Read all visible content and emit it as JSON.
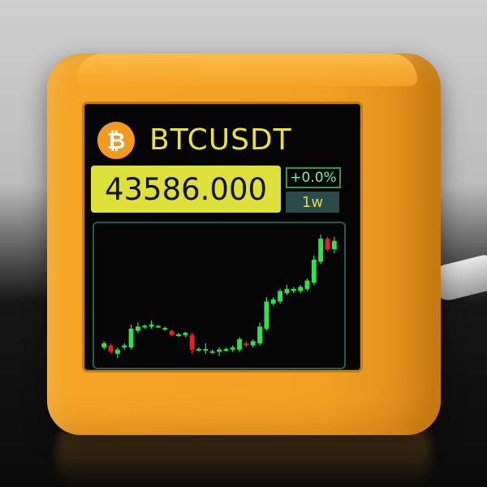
{
  "screen": {
    "coin_icon_glyph": "₿",
    "pair": "BTCUSDT",
    "price": "43586.000",
    "change": "+0.0%",
    "period": "1w"
  },
  "colors": {
    "up": "#2fe24a",
    "down": "#e3212b",
    "price_bg": "#dde13a",
    "accent_text": "#e9e23a"
  },
  "chart_data": {
    "type": "candlestick",
    "candles": [
      {
        "o": 6,
        "c": 8,
        "h": 9,
        "l": 5
      },
      {
        "o": 7,
        "c": 4,
        "h": 8,
        "l": 3
      },
      {
        "o": 3,
        "c": 5,
        "h": 6,
        "l": 1
      },
      {
        "o": 6,
        "c": 7,
        "h": 8,
        "l": 5
      },
      {
        "o": 6,
        "c": 15,
        "h": 17,
        "l": 5
      },
      {
        "o": 14,
        "c": 16,
        "h": 18,
        "l": 13
      },
      {
        "o": 16,
        "c": 16.4,
        "h": 17,
        "l": 15
      },
      {
        "o": 16,
        "c": 17,
        "h": 19,
        "l": 15
      },
      {
        "o": 16,
        "c": 16.3,
        "h": 16.8,
        "l": 15.5
      },
      {
        "o": 15,
        "c": 15.3,
        "h": 16,
        "l": 14
      },
      {
        "o": 14,
        "c": 12,
        "h": 14.5,
        "l": 11.5
      },
      {
        "o": 12,
        "c": 12.3,
        "h": 13,
        "l": 11
      },
      {
        "o": 12,
        "c": 13,
        "h": 13.5,
        "l": 11
      },
      {
        "o": 12,
        "c": 5,
        "h": 13,
        "l": 3
      },
      {
        "o": 5,
        "c": 5.3,
        "h": 6,
        "l": 4
      },
      {
        "o": 5,
        "c": 5.2,
        "h": 8,
        "l": 3
      },
      {
        "o": 4,
        "c": 4.2,
        "h": 5,
        "l": 3
      },
      {
        "o": 4,
        "c": 5,
        "h": 6,
        "l": 2
      },
      {
        "o": 5,
        "c": 5.2,
        "h": 6,
        "l": 4
      },
      {
        "o": 5,
        "c": 6,
        "h": 7,
        "l": 4
      },
      {
        "o": 5,
        "c": 10,
        "h": 11,
        "l": 4
      },
      {
        "o": 8,
        "c": 7,
        "h": 9,
        "l": 6
      },
      {
        "o": 7,
        "c": 9,
        "h": 10,
        "l": 6
      },
      {
        "o": 8,
        "c": 16,
        "h": 18,
        "l": 7
      },
      {
        "o": 15,
        "c": 28,
        "h": 30,
        "l": 14
      },
      {
        "o": 27,
        "c": 29,
        "h": 30,
        "l": 26
      },
      {
        "o": 28,
        "c": 33,
        "h": 34,
        "l": 27
      },
      {
        "o": 32,
        "c": 34,
        "h": 36,
        "l": 31
      },
      {
        "o": 33,
        "c": 34,
        "h": 35,
        "l": 32
      },
      {
        "o": 33,
        "c": 35,
        "h": 36,
        "l": 32
      },
      {
        "o": 34,
        "c": 38,
        "h": 39,
        "l": 33
      },
      {
        "o": 37,
        "c": 48,
        "h": 50,
        "l": 36
      },
      {
        "o": 47,
        "c": 58,
        "h": 60,
        "l": 46
      },
      {
        "o": 58,
        "c": 53,
        "h": 59,
        "l": 52
      },
      {
        "o": 53,
        "c": 57,
        "h": 59,
        "l": 51
      }
    ]
  }
}
